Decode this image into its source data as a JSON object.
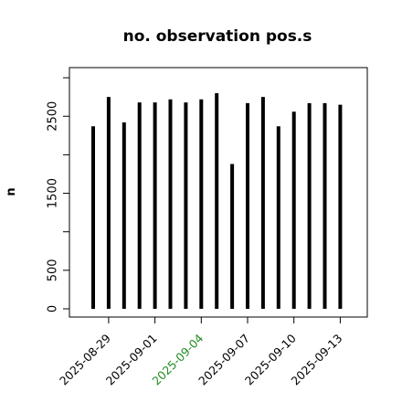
{
  "chart_data": {
    "type": "bar",
    "title": "no. observation pos.s",
    "xlabel": "",
    "ylabel": "n",
    "ylim": [
      -60,
      3000
    ],
    "yticks": [
      0,
      500,
      1500,
      2500
    ],
    "yticks_minor": [
      1000,
      2000,
      3000
    ],
    "x": [
      "2025-08-28",
      "2025-08-29",
      "2025-08-30",
      "2025-08-31",
      "2025-09-01",
      "2025-09-02",
      "2025-09-03",
      "2025-09-04",
      "2025-09-05",
      "2025-09-06",
      "2025-09-07",
      "2025-09-08",
      "2025-09-09",
      "2025-09-10",
      "2025-09-11",
      "2025-09-12",
      "2025-09-13"
    ],
    "values": [
      2370,
      2750,
      2420,
      2680,
      2680,
      2720,
      2680,
      2720,
      2800,
      1880,
      2670,
      2750,
      2370,
      2560,
      2670,
      2670,
      2650
    ],
    "xtick_labels": [
      "2025-08-29",
      "2025-09-01",
      "2025-09-04",
      "2025-09-07",
      "2025-09-10",
      "2025-09-13"
    ],
    "xtick_colors": [
      "#000000",
      "#000000",
      "#228B22",
      "#000000",
      "#000000",
      "#000000"
    ],
    "bar_color": "#000000",
    "grid": false,
    "legend": "none"
  }
}
